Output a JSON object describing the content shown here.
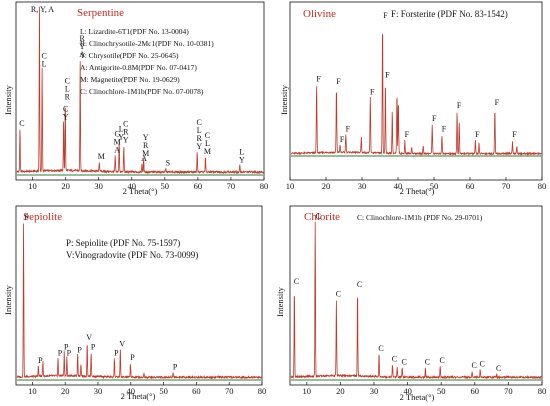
{
  "chart_data": [
    {
      "type": "line",
      "title": "Serpentine",
      "xlabel": "2 Theta(°)",
      "ylabel": "Intensity",
      "xlim": [
        5,
        80
      ],
      "xticks": [
        10,
        20,
        30,
        40,
        50,
        60,
        70,
        80
      ],
      "legend": [
        "L: Lizardite-6T1(PDF No. 13-0004)",
        "R: Clinochrysotile-2Mc1(PDF No. 10-0381)",
        "Y: Chrysotile(PDF No. 25-0645)",
        "A: Antigorite-0.8M(PDF No. 07-0417)",
        "M: Magnetite(PDF No. 19-0629)",
        "C: Clinochlore-1M1b(PDF No. 07-0078)"
      ],
      "peaks": [
        {
          "x": 6.2,
          "h": 0.26,
          "label": [
            "C"
          ]
        },
        {
          "x": 12.1,
          "h": 1.0,
          "label": [
            "R, Y, A"
          ]
        },
        {
          "x": 12.9,
          "h": 0.62,
          "label": [
            "C",
            "L"
          ]
        },
        {
          "x": 19.4,
          "h": 0.3,
          "label": [
            "C",
            "Y"
          ]
        },
        {
          "x": 19.9,
          "h": 0.42,
          "label": [
            "C",
            "L",
            "R"
          ]
        },
        {
          "x": 24.4,
          "h": 0.68,
          "label": [
            "R",
            "Y",
            "A"
          ]
        },
        {
          "x": 30.2,
          "h": 0.06,
          "label": [
            "M"
          ]
        },
        {
          "x": 35.0,
          "h": 0.1,
          "label": [
            "C",
            "M",
            "A"
          ]
        },
        {
          "x": 36.2,
          "h": 0.18,
          "label": [
            "L",
            "Y"
          ]
        },
        {
          "x": 37.6,
          "h": 0.16,
          "label": [
            "C",
            "R",
            "Y"
          ]
        },
        {
          "x": 43.1,
          "h": 0.05,
          "label": [
            "A"
          ]
        },
        {
          "x": 43.6,
          "h": 0.08,
          "label": [
            "Y",
            "R",
            "M"
          ]
        },
        {
          "x": 50.3,
          "h": 0.02,
          "label": [
            "S"
          ]
        },
        {
          "x": 59.8,
          "h": 0.12,
          "label": [
            "C",
            "L",
            "R",
            "Y"
          ]
        },
        {
          "x": 62.3,
          "h": 0.09,
          "label": [
            "C",
            "L",
            "M"
          ]
        },
        {
          "x": 72.7,
          "h": 0.04,
          "label": [
            "L",
            "Y"
          ]
        }
      ]
    },
    {
      "type": "line",
      "title": "Olivine",
      "legend_title": "F: Forsterite (PDF No. 83-1542)",
      "xlabel": "2 Theta(°)",
      "ylabel": "Intensity",
      "xlim": [
        10,
        80
      ],
      "xticks": [
        10,
        20,
        30,
        40,
        50,
        60,
        70,
        80
      ],
      "peaks": [
        {
          "x": 17.4,
          "h": 0.52,
          "label": [
            "F"
          ]
        },
        {
          "x": 22.9,
          "h": 0.5,
          "label": [
            "F"
          ]
        },
        {
          "x": 23.9,
          "h": 0.06,
          "label": [
            "F"
          ]
        },
        {
          "x": 25.5,
          "h": 0.14,
          "label": [
            "F"
          ]
        },
        {
          "x": 29.8,
          "h": 0.12,
          "label": []
        },
        {
          "x": 32.3,
          "h": 0.42,
          "label": [
            "F"
          ]
        },
        {
          "x": 35.7,
          "h": 1.0,
          "label": [
            "F"
          ]
        },
        {
          "x": 36.5,
          "h": 0.55,
          "label": [
            "F"
          ]
        },
        {
          "x": 38.4,
          "h": 0.32,
          "label": []
        },
        {
          "x": 39.7,
          "h": 0.46,
          "label": []
        },
        {
          "x": 40.1,
          "h": 0.4,
          "label": []
        },
        {
          "x": 41.9,
          "h": 0.1,
          "label": [
            "F"
          ]
        },
        {
          "x": 43.8,
          "h": 0.05,
          "label": []
        },
        {
          "x": 47.0,
          "h": 0.06,
          "label": []
        },
        {
          "x": 49.5,
          "h": 0.22,
          "label": [
            "F"
          ]
        },
        {
          "x": 52.2,
          "h": 0.14,
          "label": [
            "F"
          ]
        },
        {
          "x": 56.4,
          "h": 0.32,
          "label": [
            "F"
          ]
        },
        {
          "x": 57.0,
          "h": 0.24,
          "label": []
        },
        {
          "x": 61.5,
          "h": 0.1,
          "label": [
            "F"
          ]
        },
        {
          "x": 62.5,
          "h": 0.08,
          "label": []
        },
        {
          "x": 66.9,
          "h": 0.34,
          "label": [
            "F"
          ]
        },
        {
          "x": 71.8,
          "h": 0.1,
          "label": [
            "F"
          ]
        },
        {
          "x": 73.0,
          "h": 0.06,
          "label": []
        }
      ]
    },
    {
      "type": "line",
      "title": "Sepiolite",
      "legend": [
        "P: Sepiolite (PDF No. 75-1597)",
        "V:Vinogradovite (PDF No. 73-0099)"
      ],
      "xlabel": "2 Theta(°)",
      "ylabel": "Intensity",
      "xlim": [
        5,
        80
      ],
      "xticks": [
        10,
        20,
        30,
        40,
        50,
        60,
        70,
        80
      ],
      "peaks": [
        {
          "x": 7.3,
          "h": 1.0,
          "label": [
            "P"
          ]
        },
        {
          "x": 11.8,
          "h": 0.07,
          "label": [
            "P"
          ]
        },
        {
          "x": 13.2,
          "h": 0.1,
          "label": []
        },
        {
          "x": 17.8,
          "h": 0.12,
          "label": [
            "P"
          ]
        },
        {
          "x": 19.7,
          "h": 0.16,
          "label": [
            "P"
          ]
        },
        {
          "x": 20.5,
          "h": 0.12,
          "label": [
            "P"
          ]
        },
        {
          "x": 23.8,
          "h": 0.14,
          "label": [
            "P"
          ]
        },
        {
          "x": 24.8,
          "h": 0.08,
          "label": []
        },
        {
          "x": 26.7,
          "h": 0.22,
          "label": [
            "V"
          ]
        },
        {
          "x": 27.9,
          "h": 0.16,
          "label": [
            "P"
          ]
        },
        {
          "x": 35.0,
          "h": 0.12,
          "label": [
            "P"
          ]
        },
        {
          "x": 36.8,
          "h": 0.18,
          "label": [
            "V"
          ]
        },
        {
          "x": 39.9,
          "h": 0.09,
          "label": [
            "P"
          ]
        },
        {
          "x": 44.0,
          "h": 0.03,
          "label": []
        },
        {
          "x": 52.9,
          "h": 0.03,
          "label": [
            "P"
          ]
        }
      ]
    },
    {
      "type": "line",
      "title": "Chlorite",
      "legend_title": "C: Clinochlore-1M1b (PDF No. 29-0701)",
      "xlabel": "2 Theta(°)",
      "ylabel": "Intensity",
      "xlim": [
        5,
        80
      ],
      "xticks": [
        10,
        20,
        30,
        40,
        50,
        60,
        70,
        80
      ],
      "peaks": [
        {
          "x": 6.3,
          "h": 0.58,
          "label": [
            "C"
          ]
        },
        {
          "x": 12.5,
          "h": 1.0,
          "label": [
            "C"
          ]
        },
        {
          "x": 18.8,
          "h": 0.5,
          "label": [
            "C"
          ]
        },
        {
          "x": 25.1,
          "h": 0.56,
          "label": [
            "C"
          ]
        },
        {
          "x": 31.5,
          "h": 0.15,
          "label": [
            "C"
          ]
        },
        {
          "x": 35.5,
          "h": 0.08,
          "label": [
            "C"
          ]
        },
        {
          "x": 36.9,
          "h": 0.06,
          "label": []
        },
        {
          "x": 38.4,
          "h": 0.06,
          "label": [
            "C"
          ]
        },
        {
          "x": 45.3,
          "h": 0.06,
          "label": [
            "C"
          ]
        },
        {
          "x": 49.7,
          "h": 0.07,
          "label": [
            "C"
          ]
        },
        {
          "x": 59.2,
          "h": 0.04,
          "label": [
            "C"
          ]
        },
        {
          "x": 61.6,
          "h": 0.05,
          "label": [
            "C"
          ]
        },
        {
          "x": 66.5,
          "h": 0.02,
          "label": [
            "C"
          ]
        }
      ]
    }
  ],
  "colors": {
    "trace": "#c0392b",
    "baseline": "#2e7d32",
    "title": "#cc2a1e",
    "axis": "#111111"
  }
}
